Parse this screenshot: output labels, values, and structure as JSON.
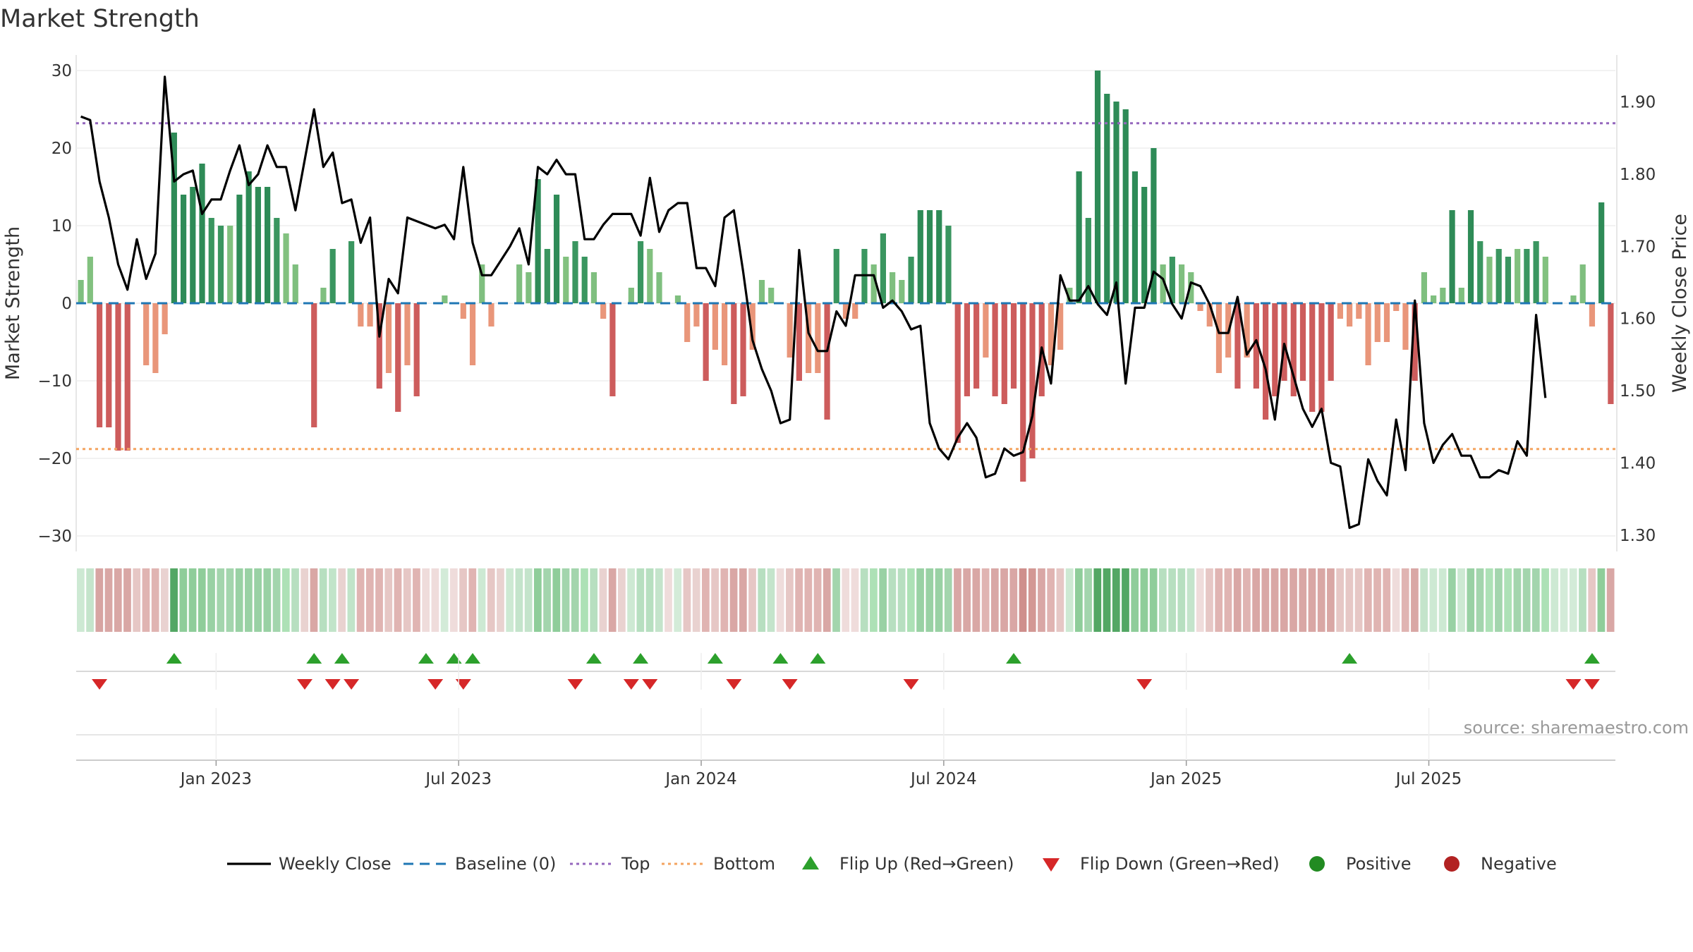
{
  "chart_data": {
    "type": "bar",
    "title": "Market Strength",
    "ylabel_left": "Market Strength",
    "ylabel_right": "Weekly Close Price",
    "y_left_range": [
      -32,
      32
    ],
    "y_left_ticks": [
      -30,
      -20,
      -10,
      0,
      10,
      20,
      30
    ],
    "y_left_tick_labels": [
      "−30",
      "−20",
      "−10",
      "0",
      "10",
      "20",
      "30"
    ],
    "y_right_range": [
      1.2773,
      1.9652
    ],
    "y_right_ticks": [
      1.3,
      1.4,
      1.5,
      1.6,
      1.7,
      1.8,
      1.9
    ],
    "y_right_tick_labels": [
      "1.30",
      "1.40",
      "1.50",
      "1.60",
      "1.70",
      "1.80",
      "1.90"
    ],
    "x_ticks": [
      "Jan 2023",
      "Jul 2023",
      "Jan 2024",
      "Jul 2024",
      "Jan 2025",
      "Jul 2025"
    ],
    "x_tick_week_index": [
      15,
      41,
      67,
      93,
      119,
      145
    ],
    "top_level": 23.2,
    "bottom_level": -18.8,
    "market_strength": [
      3,
      6,
      -16,
      -16,
      -19,
      -19,
      0,
      -8,
      -9,
      -4,
      22,
      14,
      15,
      18,
      11,
      10,
      10,
      14,
      17,
      15,
      15,
      11,
      9,
      5,
      0,
      -16,
      2,
      7,
      0,
      8,
      -3,
      -3,
      -11,
      -9,
      -14,
      -8,
      -12,
      0,
      0,
      1,
      0,
      -2,
      -8,
      5,
      -3,
      0,
      0,
      5,
      4,
      16,
      7,
      14,
      6,
      8,
      6,
      4,
      -2,
      -12,
      0,
      2,
      8,
      7,
      4,
      0,
      1,
      -5,
      -3,
      -10,
      -6,
      -8,
      -13,
      -12,
      -6,
      3,
      2,
      0,
      -7,
      -10,
      -9,
      -9,
      -15,
      7,
      -2,
      -2,
      7,
      5,
      9,
      4,
      3,
      6,
      12,
      12,
      12,
      10,
      -18,
      -12,
      -11,
      -7,
      -12,
      -13,
      -11,
      -23,
      -20,
      -12,
      -8,
      -6,
      2,
      17,
      11,
      30,
      27,
      26,
      25,
      17,
      15,
      20,
      5,
      6,
      5,
      4,
      -1,
      -3,
      -9,
      -7,
      -11,
      -7,
      -11,
      -15,
      -12,
      -10,
      -12,
      -10,
      -14,
      -14,
      -10,
      -2,
      -3,
      -2,
      -8,
      -5,
      -5,
      -1,
      -6,
      -10,
      4,
      1,
      2,
      12,
      2,
      12,
      8,
      6,
      7,
      6,
      7,
      7,
      8,
      6,
      0,
      0,
      1,
      5,
      -3,
      13,
      -13
    ],
    "weekly_close": [
      1.88,
      1.875,
      1.79,
      1.74,
      1.675,
      1.64,
      1.71,
      1.655,
      1.69,
      1.935,
      1.79,
      1.8,
      1.805,
      1.745,
      1.765,
      1.765,
      1.805,
      1.84,
      1.785,
      1.8,
      1.84,
      1.81,
      1.81,
      1.75,
      1.82,
      1.89,
      1.81,
      1.83,
      1.76,
      1.765,
      1.705,
      1.74,
      1.575,
      1.655,
      1.635,
      1.74,
      1.735,
      1.73,
      1.725,
      1.73,
      1.71,
      1.81,
      1.705,
      1.66,
      1.66,
      1.68,
      1.7,
      1.725,
      1.675,
      1.81,
      1.8,
      1.82,
      1.8,
      1.8,
      1.71,
      1.71,
      1.73,
      1.745,
      1.745,
      1.745,
      1.715,
      1.795,
      1.72,
      1.75,
      1.76,
      1.76,
      1.67,
      1.67,
      1.645,
      1.74,
      1.75,
      1.665,
      1.57,
      1.53,
      1.5,
      1.455,
      1.46,
      1.695,
      1.58,
      1.555,
      1.555,
      1.61,
      1.59,
      1.66,
      1.66,
      1.66,
      1.615,
      1.625,
      1.61,
      1.585,
      1.59,
      1.455,
      1.42,
      1.405,
      1.435,
      1.455,
      1.435,
      1.38,
      1.385,
      1.42,
      1.41,
      1.415,
      1.465,
      1.56,
      1.51,
      1.66,
      1.625,
      1.625,
      1.645,
      1.62,
      1.605,
      1.65,
      1.51,
      1.615,
      1.615,
      1.665,
      1.655,
      1.62,
      1.6,
      1.65,
      1.645,
      1.62,
      1.58,
      1.58,
      1.63,
      1.55,
      1.57,
      1.53,
      1.46,
      1.565,
      1.52,
      1.475,
      1.45,
      1.475,
      1.4,
      1.395,
      1.31,
      1.315,
      1.405,
      1.375,
      1.355,
      1.46,
      1.39,
      1.625,
      1.455,
      1.4,
      1.425,
      1.44,
      1.41,
      1.41,
      1.38,
      1.38,
      1.39,
      1.385,
      1.43,
      1.41,
      1.605,
      1.49
    ],
    "band_colors": [
      "#cde9d3",
      "#c4e4cb",
      "#d7a4a2",
      "#d9a7a5",
      "#d9a7a5",
      "#d9a7a5",
      "#e6c7c5",
      "#e0b4b2",
      "#e0b4b2",
      "#e9d2d0",
      "#53a764",
      "#8fcd9a",
      "#8fcd9a",
      "#8fcd9a",
      "#99d1a4",
      "#a3d5ad",
      "#a3d5ad",
      "#99d1a4",
      "#99d1a4",
      "#99d1a4",
      "#99d1a4",
      "#a3d5ad",
      "#ade1b6",
      "#b7dfc0",
      "#e9d2d0",
      "#d9a7a5",
      "#b7dfc0",
      "#c1e4c9",
      "#e9d2d0",
      "#c1e4c9",
      "#e0b4b2",
      "#e0b4b2",
      "#e0b4b2",
      "#e6c7c5",
      "#e0b4b2",
      "#e6c7c5",
      "#e0b4b2",
      "#efdcdb",
      "#efdcdb",
      "#d3ebd8",
      "#efdcdb",
      "#e6c7c5",
      "#e0b4b2",
      "#cde9d3",
      "#e6c7c5",
      "#e9d2d0",
      "#cde9d3",
      "#c4e4cb",
      "#c4e4cb",
      "#8fcd9a",
      "#a3d5ad",
      "#8fcd9a",
      "#a3d5ad",
      "#a3d5ad",
      "#ade1b6",
      "#b7dfc0",
      "#e9d2d0",
      "#d9a7a5",
      "#e9d2d0",
      "#cde9d3",
      "#b7dfc0",
      "#b7dfc0",
      "#c4e4cb",
      "#efdcdb",
      "#d3ebd8",
      "#e6c7c5",
      "#e9d2d0",
      "#e0b4b2",
      "#e6c7c5",
      "#e0b4b2",
      "#d9a7a5",
      "#d9a7a5",
      "#e6c7c5",
      "#b7dfc0",
      "#c4e4cb",
      "#efdcdb",
      "#e6c7c5",
      "#e0b4b2",
      "#e0b4b2",
      "#e0b4b2",
      "#d9a7a5",
      "#a3d5ad",
      "#efdcdb",
      "#efdcdb",
      "#b7dfc0",
      "#ade1b6",
      "#99d1a4",
      "#b7dfc0",
      "#b7dfc0",
      "#ade1b6",
      "#99d1a4",
      "#99d1a4",
      "#99d1a4",
      "#a3d5ad",
      "#d9a7a5",
      "#d9a7a5",
      "#d9a7a5",
      "#e0b4b2",
      "#d9a7a5",
      "#d9a7a5",
      "#d9a7a5",
      "#cf8f8c",
      "#d39894",
      "#d9a7a5",
      "#e0b4b2",
      "#e6c7c5",
      "#cde9d3",
      "#8fcd9a",
      "#a3d5ad",
      "#53a764",
      "#53a764",
      "#53a764",
      "#53a764",
      "#8fcd9a",
      "#8fcd9a",
      "#8fcd9a",
      "#b7dfc0",
      "#b7dfc0",
      "#b7dfc0",
      "#c4e4cb",
      "#efdcdb",
      "#e6c7c5",
      "#e0b4b2",
      "#e0b4b2",
      "#d9a7a5",
      "#e0b4b2",
      "#d9a7a5",
      "#d9a7a5",
      "#d9a7a5",
      "#d9a7a5",
      "#d9a7a5",
      "#d9a7a5",
      "#d9a7a5",
      "#d9a7a5",
      "#d9a7a5",
      "#e6c7c5",
      "#e6c7c5",
      "#e6c7c5",
      "#e0b4b2",
      "#e0b4b2",
      "#e0b4b2",
      "#efdcdb",
      "#e0b4b2",
      "#d9a7a5",
      "#c4e4cb",
      "#cde9d3",
      "#cde9d3",
      "#99d1a4",
      "#cde9d3",
      "#99d1a4",
      "#a3d5ad",
      "#ade1b6",
      "#a3d5ad",
      "#ade1b6",
      "#a3d5ad",
      "#a3d5ad",
      "#a3d5ad",
      "#ade1b6",
      "#cde9d3",
      "#d3ebd8",
      "#d3ebd8",
      "#b7dfc0",
      "#e6c7c5",
      "#8fcd9a",
      "#d9a7a5"
    ],
    "flip_up_weeks": [
      10,
      25,
      28,
      37,
      40,
      42,
      55,
      60,
      68,
      75,
      79,
      100,
      136,
      162
    ],
    "flip_down_weeks": [
      2,
      24,
      27,
      29,
      38,
      41,
      53,
      59,
      61,
      70,
      76,
      89,
      114,
      160,
      162
    ],
    "legend": [
      {
        "label": "Weekly Close",
        "kind": "line-solid",
        "color": "#000000"
      },
      {
        "label": "Baseline (0)",
        "kind": "line-dash",
        "color": "#1f77b4"
      },
      {
        "label": "Top",
        "kind": "line-dot",
        "color": "#9467bd"
      },
      {
        "label": "Bottom",
        "kind": "line-dot",
        "color": "#f4a460"
      },
      {
        "label": "Flip Up (Red→Green)",
        "kind": "triangle-up",
        "color": "#2ca02c"
      },
      {
        "label": "Flip Down (Green→Red)",
        "kind": "triangle-down",
        "color": "#d62728"
      },
      {
        "label": "Positive",
        "kind": "dot",
        "color": "#228b22"
      },
      {
        "label": "Negative",
        "kind": "dot",
        "color": "#b22222"
      }
    ],
    "source": "source: sharemaestro.com"
  }
}
